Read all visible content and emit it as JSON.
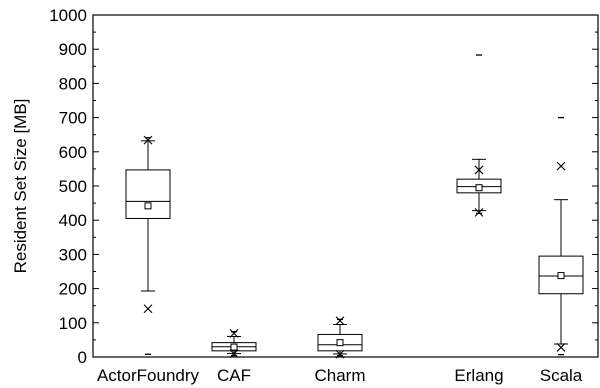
{
  "chart_data": {
    "type": "box",
    "title": "",
    "xlabel": "",
    "ylabel": "Resident Set Size [MB]",
    "ylim": [
      0,
      1000
    ],
    "yticks": [
      0,
      100,
      200,
      300,
      400,
      500,
      600,
      700,
      800,
      900,
      1000
    ],
    "categories": [
      "ActorFoundry",
      "CAF",
      "Charm",
      "Erlang",
      "Scala"
    ],
    "boxes": [
      {
        "name": "ActorFoundry",
        "q1": 405,
        "median": 455,
        "q3": 547,
        "mean": 442,
        "whisker_low": 193,
        "whisker_high": 632,
        "p1": 141,
        "p99": 634,
        "min": 8,
        "max": 641
      },
      {
        "name": "CAF",
        "q1": 18,
        "median": 30,
        "q3": 42,
        "mean": 29,
        "whisker_low": 10,
        "whisker_high": 60,
        "p1": 10,
        "p99": 69,
        "min": 4,
        "max": 74
      },
      {
        "name": "Charm",
        "q1": 18,
        "median": 36,
        "q3": 66,
        "mean": 42,
        "whisker_low": 9,
        "whisker_high": 95,
        "p1": 8,
        "p99": 106,
        "min": 4,
        "max": 110
      },
      {
        "name": "Erlang",
        "q1": 480,
        "median": 498,
        "q3": 520,
        "mean": 495,
        "whisker_low": 428,
        "whisker_high": 578,
        "p1": 423,
        "p99": 547,
        "min": 420,
        "max": 883
      },
      {
        "name": "Scala",
        "q1": 185,
        "median": 237,
        "q3": 295,
        "mean": 238,
        "whisker_low": 38,
        "whisker_high": 460,
        "p1": 28,
        "p99": 558,
        "min": 7,
        "max": 700
      }
    ],
    "grid": false,
    "legend": "none"
  }
}
